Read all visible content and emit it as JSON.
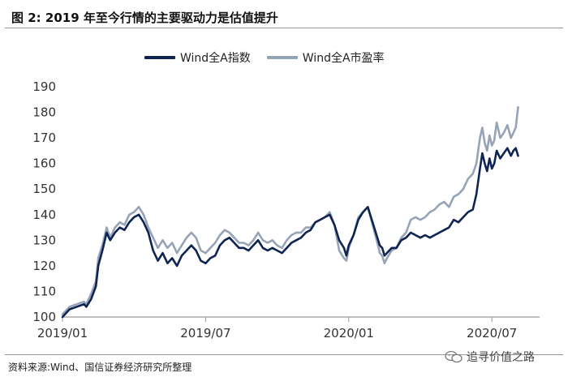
{
  "figure": {
    "label": "图 2:",
    "title": "2019 年至今行情的主要驱动力是估值提升"
  },
  "source_note": "资料来源:Wind、国信证券经济研究所整理",
  "watermark": "追寻价值之路",
  "colors": {
    "index": "#0e2554",
    "pe": "#97a3b6",
    "axis": "#9a9a9a"
  },
  "chart_data": {
    "type": "line",
    "title": "",
    "xlabel": "",
    "ylabel": "",
    "ylim": [
      100,
      190
    ],
    "yticks": [
      100,
      110,
      120,
      130,
      140,
      150,
      160,
      170,
      180,
      190
    ],
    "xlim": [
      0,
      20
    ],
    "xticks": [
      {
        "x": 0,
        "label": "2019/01"
      },
      {
        "x": 6,
        "label": "2019/07"
      },
      {
        "x": 12,
        "label": "2020/01"
      },
      {
        "x": 18,
        "label": "2020/07"
      }
    ],
    "legend_position": "top",
    "series": [
      {
        "name": "Wind全A指数",
        "color": "#0e2554",
        "points": [
          [
            0.0,
            100
          ],
          [
            0.3,
            103
          ],
          [
            0.6,
            104
          ],
          [
            0.9,
            105
          ],
          [
            1.0,
            104
          ],
          [
            1.2,
            107
          ],
          [
            1.4,
            112
          ],
          [
            1.5,
            120
          ],
          [
            1.7,
            127
          ],
          [
            1.85,
            133
          ],
          [
            2.0,
            130
          ],
          [
            2.2,
            133
          ],
          [
            2.4,
            135
          ],
          [
            2.6,
            134
          ],
          [
            2.8,
            137
          ],
          [
            3.0,
            139
          ],
          [
            3.2,
            140
          ],
          [
            3.4,
            137
          ],
          [
            3.6,
            133
          ],
          [
            3.8,
            126
          ],
          [
            4.0,
            122
          ],
          [
            4.2,
            125
          ],
          [
            4.4,
            121
          ],
          [
            4.6,
            123
          ],
          [
            4.8,
            120
          ],
          [
            5.0,
            124
          ],
          [
            5.2,
            126
          ],
          [
            5.4,
            128
          ],
          [
            5.6,
            126
          ],
          [
            5.8,
            122
          ],
          [
            6.0,
            121
          ],
          [
            6.2,
            123
          ],
          [
            6.4,
            124
          ],
          [
            6.6,
            128
          ],
          [
            6.8,
            130
          ],
          [
            7.0,
            131
          ],
          [
            7.2,
            129
          ],
          [
            7.4,
            127
          ],
          [
            7.6,
            127
          ],
          [
            7.8,
            126
          ],
          [
            8.0,
            128
          ],
          [
            8.2,
            130
          ],
          [
            8.4,
            127
          ],
          [
            8.6,
            126
          ],
          [
            8.8,
            127
          ],
          [
            9.0,
            126
          ],
          [
            9.2,
            125
          ],
          [
            9.4,
            127
          ],
          [
            9.6,
            129
          ],
          [
            9.8,
            130
          ],
          [
            10.0,
            131
          ],
          [
            10.2,
            133
          ],
          [
            10.4,
            134
          ],
          [
            10.6,
            137
          ],
          [
            10.8,
            138
          ],
          [
            11.0,
            139
          ],
          [
            11.2,
            140
          ],
          [
            11.4,
            136
          ],
          [
            11.5,
            133
          ],
          [
            11.6,
            130
          ],
          [
            11.8,
            127
          ],
          [
            11.9,
            124
          ],
          [
            12.0,
            128
          ],
          [
            12.2,
            132
          ],
          [
            12.4,
            138
          ],
          [
            12.6,
            141
          ],
          [
            12.8,
            143
          ],
          [
            13.0,
            137
          ],
          [
            13.2,
            131
          ],
          [
            13.3,
            128
          ],
          [
            13.4,
            127
          ],
          [
            13.5,
            124
          ],
          [
            13.6,
            125
          ],
          [
            13.8,
            127
          ],
          [
            14.0,
            127
          ],
          [
            14.2,
            130
          ],
          [
            14.4,
            131
          ],
          [
            14.6,
            133
          ],
          [
            14.8,
            132
          ],
          [
            15.0,
            131
          ],
          [
            15.2,
            132
          ],
          [
            15.4,
            131
          ],
          [
            15.6,
            132
          ],
          [
            15.8,
            133
          ],
          [
            16.0,
            134
          ],
          [
            16.2,
            135
          ],
          [
            16.4,
            138
          ],
          [
            16.6,
            137
          ],
          [
            16.8,
            139
          ],
          [
            17.0,
            141
          ],
          [
            17.2,
            142
          ],
          [
            17.35,
            148
          ],
          [
            17.5,
            158
          ],
          [
            17.6,
            164
          ],
          [
            17.7,
            160
          ],
          [
            17.8,
            157
          ],
          [
            17.9,
            162
          ],
          [
            18.0,
            158
          ],
          [
            18.1,
            160
          ],
          [
            18.2,
            165
          ],
          [
            18.35,
            162
          ],
          [
            18.5,
            164
          ],
          [
            18.65,
            166
          ],
          [
            18.8,
            163
          ],
          [
            18.9,
            165
          ],
          [
            19.0,
            166
          ],
          [
            19.1,
            163
          ]
        ]
      },
      {
        "name": "Wind全A市盈率",
        "color": "#97a3b6",
        "points": [
          [
            0.0,
            101
          ],
          [
            0.3,
            104
          ],
          [
            0.6,
            105
          ],
          [
            0.9,
            106
          ],
          [
            1.0,
            105
          ],
          [
            1.2,
            109
          ],
          [
            1.4,
            114
          ],
          [
            1.5,
            123
          ],
          [
            1.7,
            129
          ],
          [
            1.85,
            135
          ],
          [
            2.0,
            131
          ],
          [
            2.2,
            135
          ],
          [
            2.4,
            137
          ],
          [
            2.6,
            136
          ],
          [
            2.8,
            140
          ],
          [
            3.0,
            141
          ],
          [
            3.2,
            143
          ],
          [
            3.4,
            140
          ],
          [
            3.6,
            135
          ],
          [
            3.8,
            131
          ],
          [
            4.0,
            127
          ],
          [
            4.2,
            130
          ],
          [
            4.4,
            127
          ],
          [
            4.6,
            129
          ],
          [
            4.8,
            125
          ],
          [
            5.0,
            128
          ],
          [
            5.2,
            131
          ],
          [
            5.4,
            133
          ],
          [
            5.6,
            131
          ],
          [
            5.8,
            126
          ],
          [
            6.0,
            125
          ],
          [
            6.2,
            127
          ],
          [
            6.4,
            129
          ],
          [
            6.6,
            132
          ],
          [
            6.8,
            134
          ],
          [
            7.0,
            133
          ],
          [
            7.2,
            131
          ],
          [
            7.4,
            129
          ],
          [
            7.6,
            129
          ],
          [
            7.8,
            128
          ],
          [
            8.0,
            130
          ],
          [
            8.2,
            133
          ],
          [
            8.4,
            130
          ],
          [
            8.6,
            129
          ],
          [
            8.8,
            130
          ],
          [
            9.0,
            128
          ],
          [
            9.2,
            127
          ],
          [
            9.4,
            130
          ],
          [
            9.6,
            132
          ],
          [
            9.8,
            133
          ],
          [
            10.0,
            133
          ],
          [
            10.2,
            135
          ],
          [
            10.4,
            135
          ],
          [
            10.6,
            137
          ],
          [
            10.8,
            138
          ],
          [
            11.0,
            139
          ],
          [
            11.2,
            141
          ],
          [
            11.4,
            136
          ],
          [
            11.5,
            131
          ],
          [
            11.6,
            126
          ],
          [
            11.8,
            123
          ],
          [
            11.9,
            122
          ],
          [
            12.0,
            127
          ],
          [
            12.2,
            132
          ],
          [
            12.4,
            139
          ],
          [
            12.6,
            141
          ],
          [
            12.8,
            143
          ],
          [
            13.0,
            136
          ],
          [
            13.2,
            129
          ],
          [
            13.3,
            125
          ],
          [
            13.4,
            124
          ],
          [
            13.5,
            121
          ],
          [
            13.6,
            123
          ],
          [
            13.8,
            126
          ],
          [
            14.0,
            127
          ],
          [
            14.2,
            131
          ],
          [
            14.4,
            133
          ],
          [
            14.6,
            138
          ],
          [
            14.8,
            139
          ],
          [
            15.0,
            138
          ],
          [
            15.2,
            139
          ],
          [
            15.4,
            141
          ],
          [
            15.6,
            142
          ],
          [
            15.8,
            144
          ],
          [
            16.0,
            145
          ],
          [
            16.2,
            143
          ],
          [
            16.4,
            147
          ],
          [
            16.6,
            148
          ],
          [
            16.8,
            150
          ],
          [
            17.0,
            154
          ],
          [
            17.2,
            156
          ],
          [
            17.35,
            160
          ],
          [
            17.5,
            170
          ],
          [
            17.6,
            174
          ],
          [
            17.7,
            168
          ],
          [
            17.8,
            165
          ],
          [
            17.9,
            171
          ],
          [
            18.0,
            167
          ],
          [
            18.1,
            169
          ],
          [
            18.2,
            176
          ],
          [
            18.35,
            170
          ],
          [
            18.5,
            172
          ],
          [
            18.65,
            175
          ],
          [
            18.8,
            170
          ],
          [
            18.9,
            172
          ],
          [
            19.0,
            174
          ],
          [
            19.1,
            182
          ]
        ]
      }
    ]
  }
}
